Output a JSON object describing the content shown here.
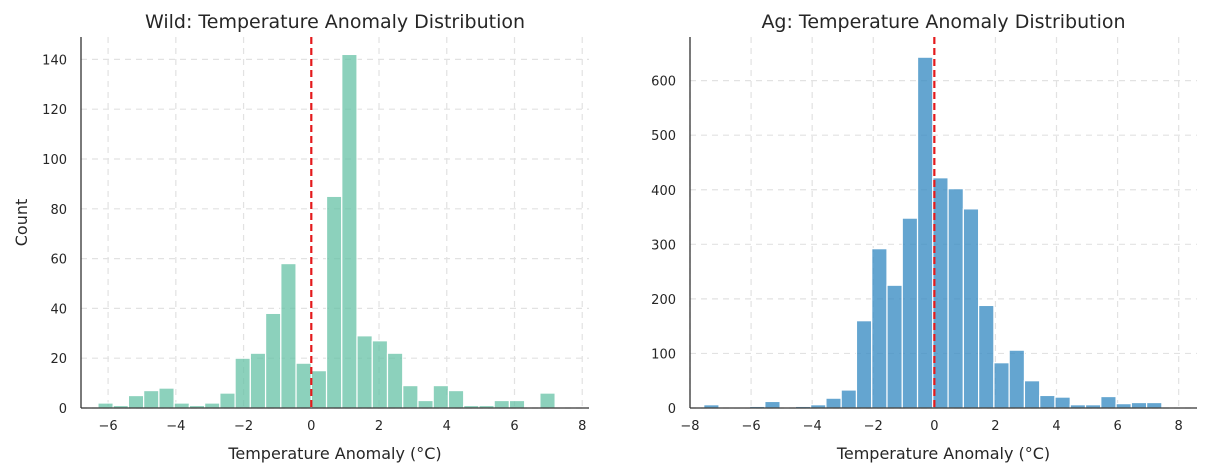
{
  "chart_data": [
    {
      "type": "bar",
      "title": "Wild: Temperature Anomaly Distribution",
      "xlabel": "Temperature Anomaly (°C)",
      "ylabel": "Count",
      "xlim": [
        -6.8,
        8.2
      ],
      "ylim": [
        0,
        149
      ],
      "xticks": [
        -6,
        -4,
        -2,
        0,
        2,
        4,
        6,
        8
      ],
      "yticks": [
        0,
        20,
        40,
        60,
        80,
        100,
        120,
        140
      ],
      "bin_start": -6.3,
      "bin_width": 0.45,
      "values": [
        2,
        1,
        5,
        7,
        8,
        2,
        1,
        2,
        6,
        20,
        22,
        38,
        58,
        18,
        15,
        85,
        142,
        29,
        27,
        22,
        9,
        3,
        9,
        7,
        1,
        1,
        3,
        3,
        0,
        6
      ],
      "bar_color": "#66c2a5",
      "reference_line_x": 0,
      "reference_line_color": "#e41a1c",
      "grid": true
    },
    {
      "type": "bar",
      "title": "Ag: Temperature Anomaly Distribution",
      "xlabel": "Temperature Anomaly (°C)",
      "ylabel": "",
      "xlim": [
        -8,
        8.6
      ],
      "ylim": [
        0,
        680
      ],
      "xticks": [
        -8,
        -6,
        -4,
        -2,
        0,
        2,
        4,
        6,
        8
      ],
      "yticks": [
        0,
        100,
        200,
        300,
        400,
        500,
        600
      ],
      "bin_start": -7.55,
      "bin_width": 0.5,
      "values": [
        6,
        0,
        2,
        3,
        12,
        0,
        3,
        6,
        18,
        33,
        160,
        292,
        225,
        348,
        643,
        422,
        402,
        365,
        188,
        83,
        106,
        50,
        23,
        20,
        6,
        6,
        21,
        8,
        10,
        10
      ],
      "bar_color": "#3d8fc4",
      "reference_line_x": 0,
      "reference_line_color": "#e41a1c",
      "grid": true
    }
  ]
}
